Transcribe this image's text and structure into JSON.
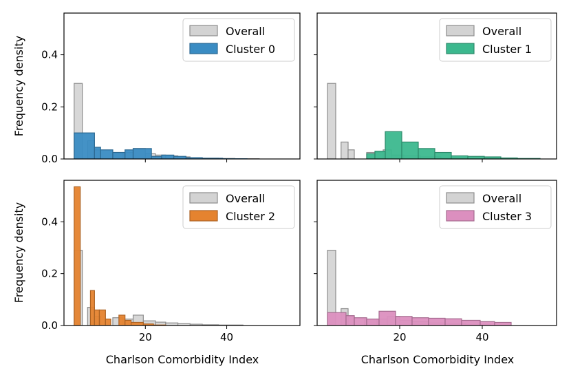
{
  "figure": {
    "ylabel": "Frequency density",
    "xlabel": "Charlson Comorbidity Index"
  },
  "colors": {
    "overall_fill": "#d3d3d3",
    "overall_edge": "#8c8c8c",
    "cluster0": "#3a8cc3",
    "cluster1": "#3cb88e",
    "cluster2": "#e5832f",
    "cluster3": "#dc8fbf"
  },
  "chart_data": [
    {
      "type": "histogram",
      "xlim": [
        0,
        58
      ],
      "ylim": [
        0,
        0.56
      ],
      "xticks": [
        20,
        40
      ],
      "yticks": [
        0.0,
        0.2,
        0.4
      ],
      "show_xtick_labels": false,
      "show_ytick_labels": true,
      "legend": "upper-right",
      "series": [
        {
          "name": "Overall",
          "color_key": "overall_fill",
          "bins": [
            [
              2.5,
              4.5,
              0.29
            ],
            [
              4.5,
              5.8,
              0.0
            ],
            [
              5.8,
              7.5,
              0.07
            ],
            [
              7.5,
              9.0,
              0.035
            ],
            [
              9.0,
              12.0,
              0.0
            ],
            [
              12.0,
              14.5,
              0.025
            ],
            [
              14.5,
              17.0,
              0.025
            ],
            [
              17.0,
              20.0,
              0.04
            ],
            [
              20.0,
              22.5,
              0.02
            ],
            [
              22.5,
              25.0,
              0.015
            ],
            [
              25.0,
              28.0,
              0.012
            ],
            [
              28.0,
              31.0,
              0.008
            ],
            [
              31.0,
              34.0,
              0.005
            ],
            [
              34.0,
              38.0,
              0.003
            ],
            [
              38.0,
              42.0,
              0.002
            ],
            [
              42.0,
              48.0,
              0.001
            ]
          ]
        },
        {
          "name": "Cluster 0",
          "color_key": "cluster0",
          "bins": [
            [
              2.5,
              7.5,
              0.1
            ],
            [
              7.5,
              9.0,
              0.045
            ],
            [
              9.0,
              12.0,
              0.035
            ],
            [
              12.0,
              15.0,
              0.025
            ],
            [
              15.0,
              17.0,
              0.035
            ],
            [
              17.0,
              21.5,
              0.04
            ],
            [
              21.5,
              24.0,
              0.01
            ],
            [
              24.0,
              27.0,
              0.015
            ],
            [
              27.0,
              30.0,
              0.01
            ],
            [
              30.0,
              34.0,
              0.005
            ],
            [
              34.0,
              39.0,
              0.003
            ],
            [
              39.0,
              45.0,
              0.001
            ]
          ]
        }
      ]
    },
    {
      "type": "histogram",
      "xlim": [
        0,
        58
      ],
      "ylim": [
        0,
        0.56
      ],
      "xticks": [
        20,
        40
      ],
      "yticks": [
        0.0,
        0.2,
        0.4
      ],
      "show_xtick_labels": false,
      "show_ytick_labels": false,
      "legend": "upper-right",
      "series": [
        {
          "name": "Overall",
          "color_key": "overall_fill",
          "bins": [
            [
              2.5,
              4.5,
              0.29
            ],
            [
              4.5,
              5.8,
              0.0
            ],
            [
              5.8,
              7.5,
              0.065
            ],
            [
              7.5,
              9.0,
              0.035
            ],
            [
              9.0,
              12.0,
              0.0
            ],
            [
              12.0,
              14.0,
              0.025
            ],
            [
              14.0,
              16.0,
              0.025
            ],
            [
              16.0,
              18.0,
              0.035
            ],
            [
              18.0,
              21.0,
              0.015
            ],
            [
              21.0,
              25.0,
              0.012
            ],
            [
              25.0,
              30.0,
              0.008
            ],
            [
              30.0,
              36.0,
              0.004
            ],
            [
              36.0,
              44.0,
              0.002
            ]
          ]
        },
        {
          "name": "Cluster 1",
          "color_key": "cluster1",
          "bins": [
            [
              12.0,
              14.0,
              0.02
            ],
            [
              14.0,
              16.5,
              0.03
            ],
            [
              16.5,
              20.5,
              0.105
            ],
            [
              20.5,
              24.5,
              0.065
            ],
            [
              24.5,
              28.5,
              0.04
            ],
            [
              28.5,
              32.5,
              0.025
            ],
            [
              32.5,
              36.5,
              0.012
            ],
            [
              36.5,
              40.5,
              0.01
            ],
            [
              40.5,
              44.5,
              0.008
            ],
            [
              44.5,
              48.5,
              0.004
            ],
            [
              48.5,
              54.0,
              0.002
            ]
          ]
        }
      ]
    },
    {
      "type": "histogram",
      "xlim": [
        0,
        58
      ],
      "ylim": [
        0,
        0.56
      ],
      "xticks": [
        20,
        40
      ],
      "yticks": [
        0.0,
        0.2,
        0.4
      ],
      "show_xtick_labels": true,
      "show_ytick_labels": true,
      "legend": "upper-right",
      "series": [
        {
          "name": "Overall",
          "color_key": "overall_fill",
          "bins": [
            [
              2.5,
              4.5,
              0.29
            ],
            [
              4.5,
              5.8,
              0.0
            ],
            [
              5.8,
              7.5,
              0.07
            ],
            [
              7.5,
              9.0,
              0.035
            ],
            [
              9.0,
              12.0,
              0.0
            ],
            [
              12.0,
              14.5,
              0.03
            ],
            [
              14.5,
              17.0,
              0.025
            ],
            [
              17.0,
              19.5,
              0.04
            ],
            [
              19.5,
              22.5,
              0.018
            ],
            [
              22.5,
              25.0,
              0.013
            ],
            [
              25.0,
              28.0,
              0.01
            ],
            [
              28.0,
              31.0,
              0.007
            ],
            [
              31.0,
              34.0,
              0.005
            ],
            [
              34.0,
              38.0,
              0.003
            ],
            [
              38.0,
              44.0,
              0.002
            ]
          ]
        },
        {
          "name": "Cluster 2",
          "color_key": "cluster2",
          "bins": [
            [
              2.5,
              4.0,
              0.535
            ],
            [
              4.0,
              6.5,
              0.0
            ],
            [
              6.5,
              7.5,
              0.135
            ],
            [
              7.5,
              8.7,
              0.06
            ],
            [
              8.7,
              10.2,
              0.06
            ],
            [
              10.2,
              11.5,
              0.025
            ],
            [
              11.5,
              13.5,
              0.0
            ],
            [
              13.5,
              15.0,
              0.04
            ],
            [
              15.0,
              16.5,
              0.02
            ],
            [
              16.5,
              19.5,
              0.012
            ],
            [
              19.5,
              22.0,
              0.006
            ],
            [
              22.0,
              25.0,
              0.002
            ]
          ]
        }
      ]
    },
    {
      "type": "histogram",
      "xlim": [
        0,
        58
      ],
      "ylim": [
        0,
        0.56
      ],
      "xticks": [
        20,
        40
      ],
      "yticks": [
        0.0,
        0.2,
        0.4
      ],
      "show_xtick_labels": true,
      "show_ytick_labels": false,
      "legend": "upper-right",
      "series": [
        {
          "name": "Overall",
          "color_key": "overall_fill",
          "bins": [
            [
              2.5,
              4.5,
              0.29
            ],
            [
              4.5,
              5.8,
              0.0
            ],
            [
              5.8,
              7.5,
              0.065
            ],
            [
              7.5,
              9.0,
              0.035
            ],
            [
              9.0,
              11.5,
              0.0
            ],
            [
              11.5,
              14.5,
              0.025
            ],
            [
              14.5,
              17.0,
              0.025
            ],
            [
              17.0,
              20.0,
              0.035
            ],
            [
              20.0,
              23.0,
              0.02
            ],
            [
              23.0,
              27.0,
              0.015
            ],
            [
              27.0,
              31.0,
              0.01
            ],
            [
              31.0,
              36.0,
              0.006
            ],
            [
              36.0,
              42.0,
              0.003
            ]
          ]
        },
        {
          "name": "Cluster 3",
          "color_key": "cluster3",
          "bins": [
            [
              2.5,
              7.0,
              0.05
            ],
            [
              7.0,
              9.0,
              0.038
            ],
            [
              9.0,
              12.0,
              0.03
            ],
            [
              12.0,
              15.0,
              0.025
            ],
            [
              15.0,
              19.0,
              0.055
            ],
            [
              19.0,
              23.0,
              0.035
            ],
            [
              23.0,
              27.0,
              0.03
            ],
            [
              27.0,
              31.0,
              0.028
            ],
            [
              31.0,
              35.0,
              0.026
            ],
            [
              35.0,
              39.5,
              0.02
            ],
            [
              39.5,
              43.0,
              0.015
            ],
            [
              43.0,
              47.0,
              0.012
            ]
          ]
        }
      ]
    }
  ]
}
